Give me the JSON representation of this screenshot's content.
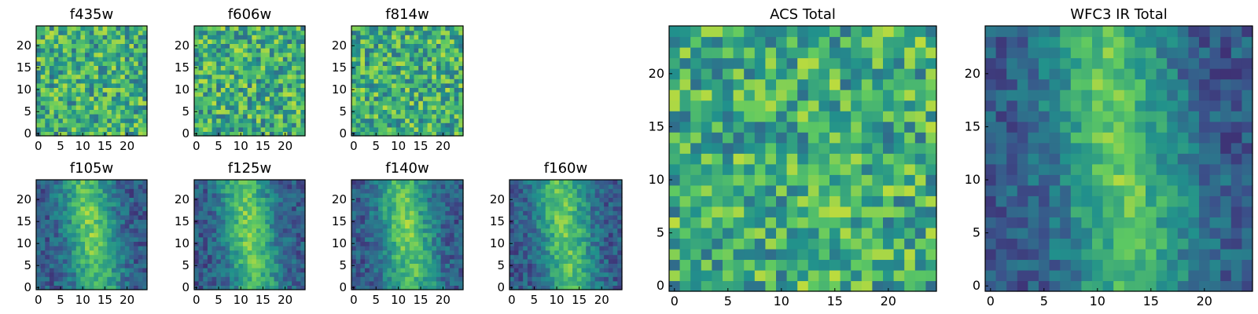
{
  "chart_data": [
    {
      "type": "heatmap",
      "title": "f435w",
      "grid_size": 25,
      "xticks": [
        0,
        5,
        10,
        15,
        20
      ],
      "yticks": [
        0,
        5,
        10,
        15,
        20
      ],
      "colormap": "viridis",
      "values": []
    },
    {
      "type": "heatmap",
      "title": "f606w",
      "grid_size": 25,
      "xticks": [
        0,
        5,
        10,
        15,
        20
      ],
      "yticks": [
        0,
        5,
        10,
        15,
        20
      ],
      "colormap": "viridis",
      "values": []
    },
    {
      "type": "heatmap",
      "title": "f814w",
      "grid_size": 25,
      "xticks": [
        0,
        5,
        10,
        15,
        20
      ],
      "yticks": [
        0,
        5,
        10,
        15,
        20
      ],
      "colormap": "viridis",
      "values": []
    },
    {
      "type": "heatmap",
      "title": "f105w",
      "grid_size": 25,
      "xticks": [
        0,
        5,
        10,
        15,
        20
      ],
      "yticks": [
        0,
        5,
        10,
        15,
        20
      ],
      "colormap": "viridis",
      "values": []
    },
    {
      "type": "heatmap",
      "title": "f125w",
      "grid_size": 25,
      "xticks": [
        0,
        5,
        10,
        15,
        20
      ],
      "yticks": [
        0,
        5,
        10,
        15,
        20
      ],
      "colormap": "viridis",
      "values": []
    },
    {
      "type": "heatmap",
      "title": "f140w",
      "grid_size": 25,
      "xticks": [
        0,
        5,
        10,
        15,
        20
      ],
      "yticks": [
        0,
        5,
        10,
        15,
        20
      ],
      "colormap": "viridis",
      "values": []
    },
    {
      "type": "heatmap",
      "title": "f160w",
      "grid_size": 25,
      "xticks": [
        0,
        5,
        10,
        15,
        20
      ],
      "yticks": [
        0,
        5,
        10,
        15,
        20
      ],
      "colormap": "viridis",
      "values": []
    },
    {
      "type": "heatmap",
      "title": "ACS Total",
      "grid_size": 25,
      "xticks": [
        0,
        5,
        10,
        15,
        20
      ],
      "yticks": [
        0,
        5,
        10,
        15,
        20
      ],
      "colormap": "viridis",
      "values": []
    },
    {
      "type": "heatmap",
      "title": "WFC3 IR Total",
      "grid_size": 25,
      "xticks": [
        0,
        5,
        10,
        15,
        20
      ],
      "yticks": [
        0,
        5,
        10,
        15,
        20
      ],
      "colormap": "viridis",
      "values": []
    }
  ],
  "colors": {
    "viridis": [
      "#440154",
      "#3b528b",
      "#21918c",
      "#5ec962",
      "#fde725"
    ]
  }
}
